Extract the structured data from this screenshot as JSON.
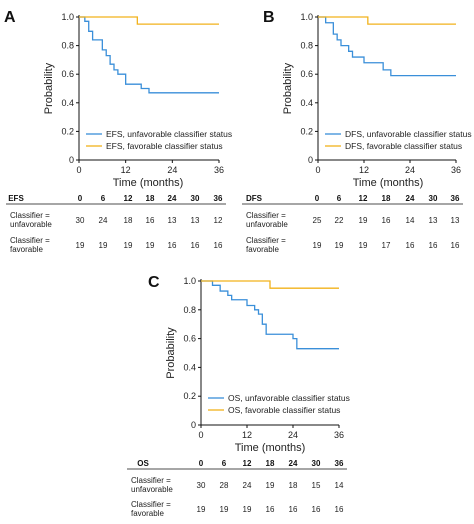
{
  "colors": {
    "unfavorable": "#3a8fd9",
    "favorable": "#f2b21b"
  },
  "chart_data": [
    {
      "type": "line",
      "panel": "A",
      "xlabel": "Time (months)",
      "ylabel": "Probability",
      "xlim": [
        0,
        36
      ],
      "ylim": [
        0,
        1.0
      ],
      "xticks": [
        "0",
        "12",
        "24",
        "36"
      ],
      "yticks": [
        "0",
        "0.2",
        "0.4",
        "0.6",
        "0.8",
        "1.0"
      ],
      "grid": false,
      "legend_position": "bottom-left",
      "series": [
        {
          "name": "EFS, unfavorable classifier status",
          "step": true,
          "x": [
            0,
            1.5,
            2.5,
            3.5,
            6,
            7,
            8,
            9,
            10,
            12,
            16,
            18,
            36
          ],
          "y": [
            1.0,
            0.97,
            0.9,
            0.84,
            0.77,
            0.73,
            0.67,
            0.63,
            0.6,
            0.53,
            0.5,
            0.47,
            0.47
          ]
        },
        {
          "name": "EFS, favorable classifier status",
          "step": true,
          "x": [
            0,
            15,
            36
          ],
          "y": [
            1.0,
            0.95,
            0.95
          ]
        }
      ],
      "table": {
        "header": "EFS",
        "times": [
          "0",
          "6",
          "12",
          "18",
          "24",
          "30",
          "36"
        ],
        "rows": [
          {
            "label": [
              "Classifier =",
              "unfavorable"
            ],
            "values": [
              "30",
              "24",
              "18",
              "16",
              "13",
              "13",
              "12"
            ]
          },
          {
            "label": [
              "Classifier =",
              "favorable"
            ],
            "values": [
              "19",
              "19",
              "19",
              "19",
              "16",
              "16",
              "16"
            ]
          }
        ]
      }
    },
    {
      "type": "line",
      "panel": "B",
      "xlabel": "Time (months)",
      "ylabel": "Probability",
      "xlim": [
        0,
        36
      ],
      "ylim": [
        0,
        1.0
      ],
      "xticks": [
        "0",
        "12",
        "24",
        "36"
      ],
      "yticks": [
        "0",
        "0.2",
        "0.4",
        "0.6",
        "0.8",
        "1.0"
      ],
      "grid": false,
      "legend_position": "bottom-left",
      "series": [
        {
          "name": "DFS, unfavorable classifier status",
          "step": true,
          "x": [
            0,
            2,
            4,
            5,
            6,
            8,
            9,
            12,
            17,
            19,
            36
          ],
          "y": [
            1.0,
            0.96,
            0.88,
            0.84,
            0.8,
            0.76,
            0.72,
            0.68,
            0.63,
            0.59,
            0.59
          ]
        },
        {
          "name": "DFS, favorable classifier status",
          "step": true,
          "x": [
            0,
            13,
            36
          ],
          "y": [
            1.0,
            0.95,
            0.95
          ]
        }
      ],
      "table": {
        "header": "DFS",
        "times": [
          "0",
          "6",
          "12",
          "18",
          "24",
          "30",
          "36"
        ],
        "rows": [
          {
            "label": [
              "Classifier =",
              "unfavorable"
            ],
            "values": [
              "25",
              "22",
              "19",
              "16",
              "14",
              "13",
              "13"
            ]
          },
          {
            "label": [
              "Classifier =",
              "favorable"
            ],
            "values": [
              "19",
              "19",
              "19",
              "17",
              "16",
              "16",
              "16"
            ]
          }
        ]
      }
    },
    {
      "type": "line",
      "panel": "C",
      "xlabel": "Time (months)",
      "ylabel": "Probability",
      "xlim": [
        0,
        36
      ],
      "ylim": [
        0,
        1.0
      ],
      "xticks": [
        "0",
        "12",
        "24",
        "36"
      ],
      "yticks": [
        "0",
        "0.2",
        "0.4",
        "0.6",
        "0.8",
        "1.0"
      ],
      "grid": false,
      "legend_position": "bottom-left",
      "series": [
        {
          "name": "OS, unfavorable classifier status",
          "step": true,
          "x": [
            0,
            3,
            5,
            7,
            8,
            12,
            14,
            15,
            16,
            17,
            24,
            25,
            36
          ],
          "y": [
            1.0,
            0.97,
            0.93,
            0.9,
            0.87,
            0.83,
            0.8,
            0.77,
            0.7,
            0.63,
            0.6,
            0.53,
            0.53
          ]
        },
        {
          "name": "OS, favorable classifier status",
          "step": true,
          "x": [
            0,
            18,
            36
          ],
          "y": [
            1.0,
            0.95,
            0.95
          ]
        }
      ],
      "table": {
        "header": "OS",
        "times": [
          "0",
          "6",
          "12",
          "18",
          "24",
          "30",
          "36"
        ],
        "rows": [
          {
            "label": [
              "Classifier =",
              "unfavorable"
            ],
            "values": [
              "30",
              "28",
              "24",
              "19",
              "18",
              "15",
              "14"
            ]
          },
          {
            "label": [
              "Classifier =",
              "favorable"
            ],
            "values": [
              "19",
              "19",
              "19",
              "16",
              "16",
              "16",
              "16"
            ]
          }
        ]
      }
    }
  ]
}
